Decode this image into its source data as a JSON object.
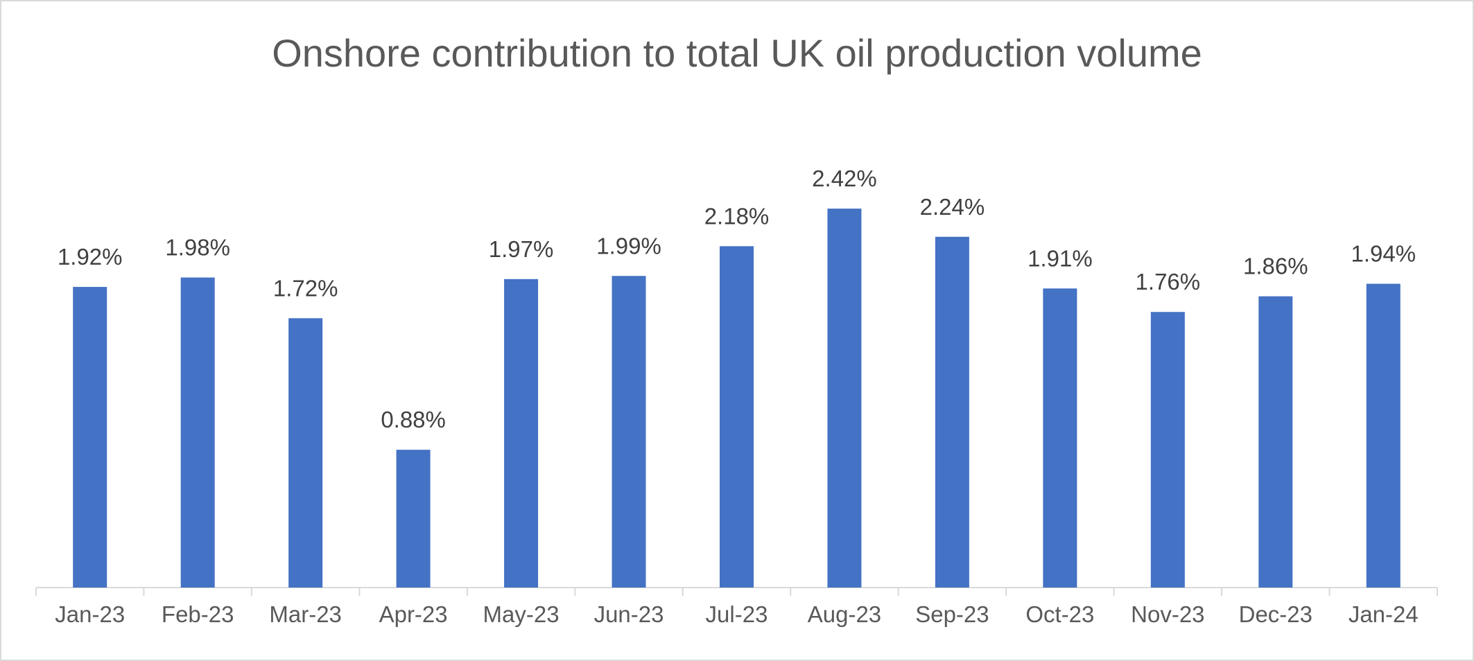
{
  "chart_data": {
    "type": "bar",
    "title": "Onshore contribution to total UK oil production volume",
    "xlabel": "",
    "ylabel": "",
    "categories": [
      "Jan-23",
      "Feb-23",
      "Mar-23",
      "Apr-23",
      "May-23",
      "Jun-23",
      "Jul-23",
      "Aug-23",
      "Sep-23",
      "Oct-23",
      "Nov-23",
      "Dec-23",
      "Jan-24"
    ],
    "values": [
      1.92,
      1.98,
      1.72,
      0.88,
      1.97,
      1.99,
      2.18,
      2.42,
      2.24,
      1.91,
      1.76,
      1.86,
      1.94
    ],
    "data_labels": [
      "1.92%",
      "1.98%",
      "1.72%",
      "0.88%",
      "1.97%",
      "1.99%",
      "2.18%",
      "2.42%",
      "2.24%",
      "1.91%",
      "1.76%",
      "1.86%",
      "1.94%"
    ],
    "ylim": [
      0,
      2.6
    ],
    "grid": false,
    "legend": "none",
    "bar_color": "#4472c4"
  }
}
